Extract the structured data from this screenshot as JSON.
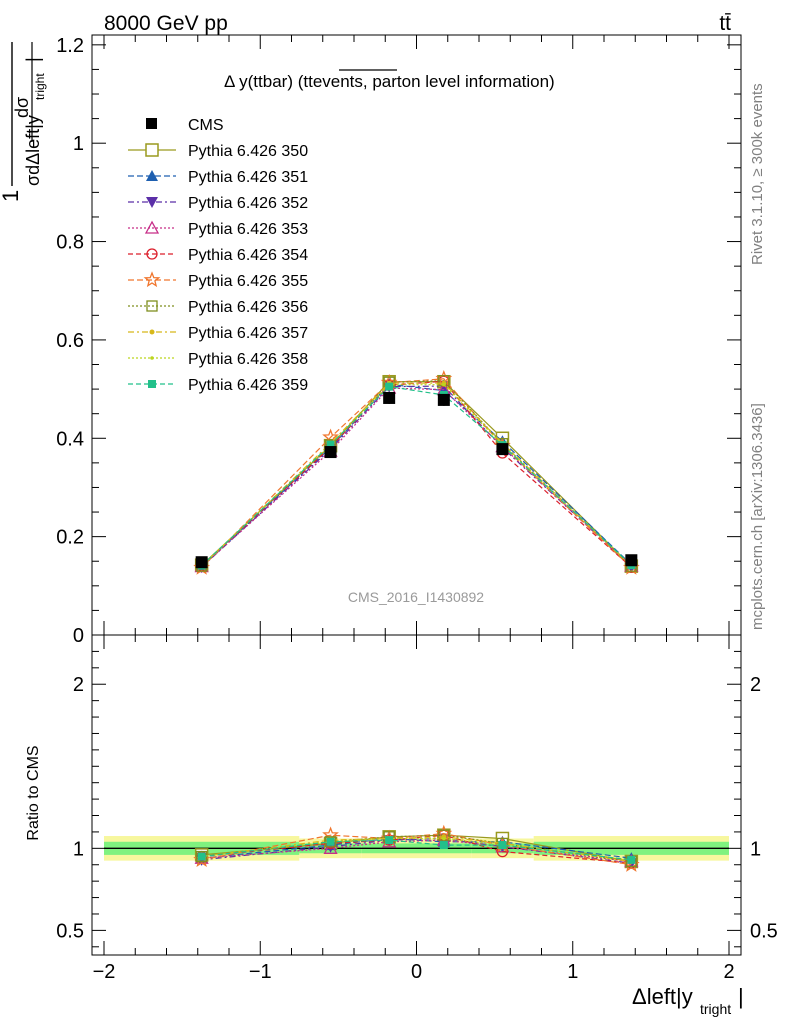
{
  "header": {
    "energy_label": "8000 GeV pp",
    "process_label": "tt̄",
    "title_main": "Δ y(ttbar) (tt",
    "title_over": "events",
    "title_tail": ", parton level information)",
    "y_label_main": "1",
    "y_label_num": "dσ",
    "y_label_den": "σdΔleft|y",
    "y_label_sub": "tright",
    "y_label_close": "|",
    "side_rivet": "Rivet 3.1.10, ≥ 300k events",
    "side_mcplots": "mcplots.cern.ch [arXiv:1306.3436]",
    "analysis_id": "CMS_2016_I1430892",
    "ratio_ylabel": "Ratio to CMS",
    "x_label_main": "Δleft|y",
    "x_label_sub": "tright",
    "x_label_close": "|"
  },
  "colors": {
    "data": "#000000",
    "band_inner": "#7ff27f",
    "band_outer": "#f7f79e"
  },
  "chart_data": [
    {
      "type": "line",
      "panel": "main",
      "title": "Δ y(ttbar) (ttevents, parton level information)",
      "xlabel": "Δleft|y_tright|",
      "ylabel": "1/σ dσ/dΔleft|y_tright|",
      "xlim": [
        -2,
        2
      ],
      "ylim": [
        0,
        1.22
      ],
      "yticks": [
        0,
        0.2,
        0.4,
        0.6,
        0.8,
        1,
        1.2
      ],
      "ytick_labels": [
        "0",
        "0.2",
        "0.4",
        "0.6",
        "0.8",
        "1",
        "1.2"
      ],
      "x": [
        -1.375,
        -0.55,
        -0.175,
        0.175,
        0.55,
        1.375
      ],
      "x_err": [
        0.625,
        0.2,
        0.175,
        0.175,
        0.2,
        0.625
      ],
      "data": {
        "name": "CMS",
        "values": [
          0.148,
          0.372,
          0.482,
          0.478,
          0.378,
          0.152
        ],
        "errors": [
          0.006,
          0.01,
          0.012,
          0.012,
          0.01,
          0.006
        ]
      },
      "series": [
        {
          "name": "Pythia 6.426 350",
          "color": "#9a9a1f",
          "marker": "square-open",
          "dash": "",
          "values": [
            0.142,
            0.385,
            0.515,
            0.515,
            0.4,
            0.14
          ]
        },
        {
          "name": "Pythia 6.426 351",
          "color": "#1e5fb0",
          "marker": "triangle-up",
          "dash": "6,3",
          "values": [
            0.139,
            0.381,
            0.51,
            0.497,
            0.394,
            0.143
          ]
        },
        {
          "name": "Pythia 6.426 352",
          "color": "#5b2fa8",
          "marker": "triangle-down",
          "dash": "6,3,2,3",
          "values": [
            0.138,
            0.378,
            0.505,
            0.506,
            0.381,
            0.139
          ]
        },
        {
          "name": "Pythia 6.426 353",
          "color": "#c72d88",
          "marker": "triangle-open",
          "dash": "2,2",
          "values": [
            0.139,
            0.374,
            0.502,
            0.499,
            0.383,
            0.14
          ]
        },
        {
          "name": "Pythia 6.426 354",
          "color": "#dc1f2b",
          "marker": "circle-open",
          "dash": "5,3",
          "values": [
            0.141,
            0.382,
            0.508,
            0.516,
            0.37,
            0.138
          ]
        },
        {
          "name": "Pythia 6.426 355",
          "color": "#f0762e",
          "marker": "star-open",
          "dash": "6,3",
          "values": [
            0.137,
            0.402,
            0.513,
            0.521,
            0.385,
            0.137
          ]
        },
        {
          "name": "Pythia 6.426 356",
          "color": "#7f8f1f",
          "marker": "square-open-small",
          "dash": "2,2",
          "values": [
            0.14,
            0.386,
            0.514,
            0.517,
            0.389,
            0.14
          ]
        },
        {
          "name": "Pythia 6.426 357",
          "color": "#d7b81a",
          "marker": "dot",
          "dash": "6,3,2,3",
          "values": [
            0.14,
            0.39,
            0.512,
            0.512,
            0.39,
            0.14
          ]
        },
        {
          "name": "Pythia 6.426 358",
          "color": "#bcd51e",
          "marker": "dot-small",
          "dash": "2,2",
          "values": [
            0.141,
            0.387,
            0.509,
            0.509,
            0.387,
            0.141
          ]
        },
        {
          "name": "Pythia 6.426 359",
          "color": "#22c08a",
          "marker": "square-filled",
          "dash": "5,3",
          "values": [
            0.141,
            0.387,
            0.505,
            0.488,
            0.386,
            0.142
          ]
        }
      ]
    },
    {
      "type": "line",
      "panel": "ratio",
      "ylabel": "Ratio to CMS",
      "xlim": [
        -2,
        2
      ],
      "ylim": [
        0.35,
        2.3
      ],
      "yticks": [
        0.5,
        1,
        2
      ],
      "ytick_labels": [
        "0.5",
        "1",
        "2"
      ],
      "xticks": [
        -2,
        -1,
        0,
        1,
        2
      ],
      "xtick_labels": [
        "−2",
        "−1",
        "0",
        "1",
        "2"
      ],
      "x": [
        -1.375,
        -0.55,
        -0.175,
        0.175,
        0.55,
        1.375
      ],
      "band_inner": [
        0.04,
        0.03,
        0.03,
        0.03,
        0.03,
        0.04
      ],
      "band_outer": [
        0.075,
        0.06,
        0.06,
        0.06,
        0.06,
        0.075
      ],
      "series": [
        {
          "name": "Pythia 6.426 350",
          "values": [
            0.96,
            1.03,
            1.07,
            1.08,
            1.06,
            0.92
          ]
        },
        {
          "name": "Pythia 6.426 351",
          "values": [
            0.94,
            1.02,
            1.06,
            1.04,
            1.04,
            0.94
          ]
        },
        {
          "name": "Pythia 6.426 352",
          "values": [
            0.93,
            1.01,
            1.05,
            1.06,
            1.01,
            0.91
          ]
        },
        {
          "name": "Pythia 6.426 353",
          "values": [
            0.94,
            1.0,
            1.04,
            1.05,
            1.01,
            0.92
          ]
        },
        {
          "name": "Pythia 6.426 354",
          "values": [
            0.95,
            1.03,
            1.05,
            1.08,
            0.98,
            0.91
          ]
        },
        {
          "name": "Pythia 6.426 355",
          "values": [
            0.93,
            1.08,
            1.06,
            1.09,
            1.02,
            0.9
          ]
        },
        {
          "name": "Pythia 6.426 356",
          "values": [
            0.95,
            1.04,
            1.07,
            1.08,
            1.03,
            0.92
          ]
        },
        {
          "name": "Pythia 6.426 357",
          "values": [
            0.95,
            1.05,
            1.06,
            1.07,
            1.03,
            0.92
          ]
        },
        {
          "name": "Pythia 6.426 358",
          "values": [
            0.95,
            1.04,
            1.06,
            1.06,
            1.02,
            0.93
          ]
        },
        {
          "name": "Pythia 6.426 359",
          "values": [
            0.95,
            1.04,
            1.05,
            1.02,
            1.02,
            0.93
          ]
        }
      ]
    }
  ]
}
